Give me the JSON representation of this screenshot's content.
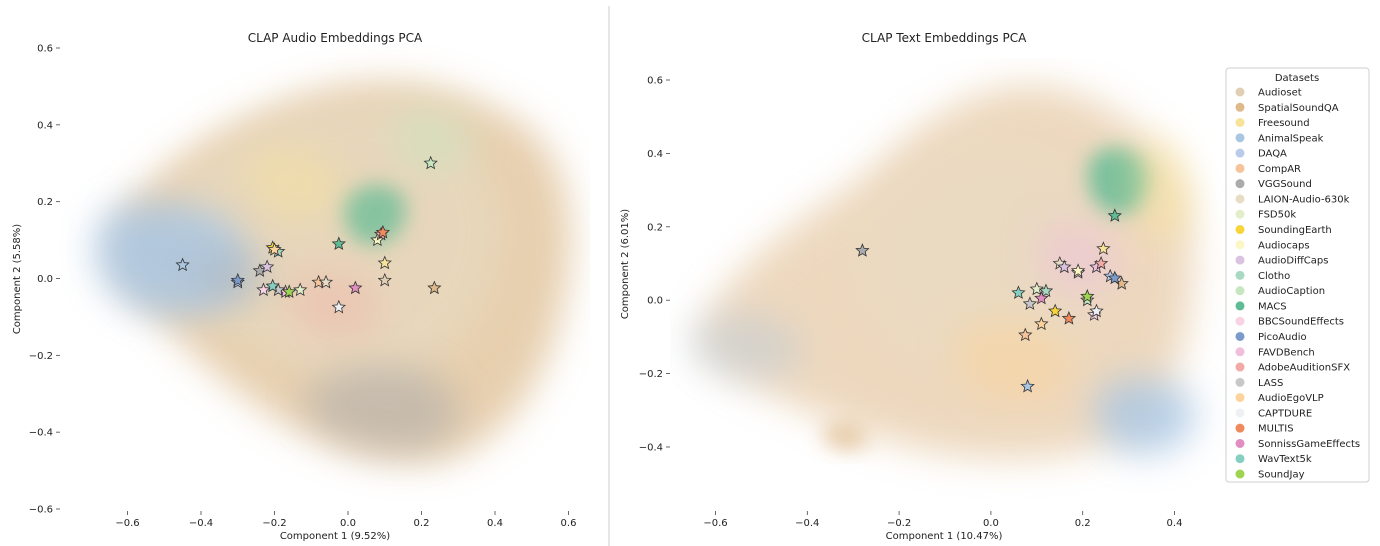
{
  "chart_data": [
    {
      "type": "scatter",
      "title": "CLAP Audio Embeddings PCA",
      "xlabel": "Component 1 (9.52%)",
      "ylabel": "Component 2 (5.58%)",
      "xlim": [
        -0.78,
        0.66
      ],
      "ylim": [
        -0.6,
        0.62
      ],
      "xticks": [
        -0.6,
        -0.4,
        -0.2,
        0.0,
        0.2,
        0.4,
        0.6
      ],
      "xtick_labels": [
        "−0.6",
        "−0.4",
        "−0.2",
        "0.0",
        "0.2",
        "0.4",
        "0.6"
      ],
      "yticks": [
        -0.6,
        -0.4,
        -0.2,
        0.0,
        0.2,
        0.4,
        0.6
      ],
      "ytick_labels": [
        "−0.6",
        "−0.4",
        "−0.2",
        "0.0",
        "0.2",
        "0.4",
        "0.6"
      ],
      "grid": false,
      "centroids": [
        {
          "dataset": "Audioset",
          "x": 0.1,
          "y": -0.005
        },
        {
          "dataset": "SpatialSoundQA",
          "x": 0.235,
          "y": -0.025
        },
        {
          "dataset": "Freesound",
          "x": 0.1,
          "y": 0.04
        },
        {
          "dataset": "AnimalSpeak",
          "x": -0.45,
          "y": 0.035
        },
        {
          "dataset": "DAQA",
          "x": -0.3,
          "y": -0.01
        },
        {
          "dataset": "CompAR",
          "x": -0.08,
          "y": -0.01
        },
        {
          "dataset": "VGGSound",
          "x": -0.24,
          "y": 0.02
        },
        {
          "dataset": "LAION-Audio-630k",
          "x": -0.06,
          "y": -0.01
        },
        {
          "dataset": "FSD50k",
          "x": -0.13,
          "y": -0.03
        },
        {
          "dataset": "SoundingEarth",
          "x": -0.205,
          "y": 0.08
        },
        {
          "dataset": "Audiocaps",
          "x": 0.08,
          "y": 0.1
        },
        {
          "dataset": "AudioDiffCaps",
          "x": -0.22,
          "y": 0.03
        },
        {
          "dataset": "Clotho",
          "x": -0.19,
          "y": 0.07
        },
        {
          "dataset": "AudioCaption",
          "x": 0.225,
          "y": 0.3
        },
        {
          "dataset": "MACS",
          "x": -0.025,
          "y": 0.09
        },
        {
          "dataset": "BBCSoundEffects",
          "x": -0.23,
          "y": -0.03
        },
        {
          "dataset": "PicoAudio",
          "x": -0.3,
          "y": -0.005
        },
        {
          "dataset": "FAVDBench",
          "x": -0.17,
          "y": -0.035
        },
        {
          "dataset": "AdobeAuditionSFX",
          "x": 0.09,
          "y": 0.115
        },
        {
          "dataset": "LASS",
          "x": -0.19,
          "y": -0.03
        },
        {
          "dataset": "AudioEgoVLP",
          "x": -0.2,
          "y": 0.075
        },
        {
          "dataset": "CAPTDURE",
          "x": -0.025,
          "y": -0.075
        },
        {
          "dataset": "MULTIS",
          "x": 0.095,
          "y": 0.12
        },
        {
          "dataset": "SonnissGameEffects",
          "x": 0.02,
          "y": -0.025
        },
        {
          "dataset": "WavText5k",
          "x": -0.205,
          "y": -0.02
        },
        {
          "dataset": "SoundJay",
          "x": -0.16,
          "y": -0.035
        }
      ]
    },
    {
      "type": "scatter",
      "title": "CLAP Text Embeddings PCA",
      "xlabel": "Component 1 (10.47%)",
      "ylabel": "Component 2 (6.01%)",
      "xlim": [
        -0.7,
        0.46
      ],
      "ylim": [
        -0.57,
        0.65
      ],
      "xticks": [
        -0.6,
        -0.4,
        -0.2,
        0.0,
        0.2,
        0.4
      ],
      "xtick_labels": [
        "−0.6",
        "−0.4",
        "−0.2",
        "0.0",
        "0.2",
        "0.4"
      ],
      "yticks": [
        -0.4,
        -0.2,
        0.0,
        0.2,
        0.4,
        0.6
      ],
      "ytick_labels": [
        "−0.4",
        "−0.2",
        "0.0",
        "0.2",
        "0.4",
        "0.6"
      ],
      "grid": false,
      "legend_title": "Datasets",
      "legend_position": "right",
      "centroids": [
        {
          "dataset": "Audioset",
          "x": 0.19,
          "y": 0.075
        },
        {
          "dataset": "SpatialSoundQA",
          "x": 0.285,
          "y": 0.045
        },
        {
          "dataset": "Freesound",
          "x": 0.245,
          "y": 0.14
        },
        {
          "dataset": "AnimalSpeak",
          "x": 0.08,
          "y": -0.235
        },
        {
          "dataset": "DAQA",
          "x": 0.26,
          "y": 0.065
        },
        {
          "dataset": "CompAR",
          "x": 0.075,
          "y": -0.095
        },
        {
          "dataset": "VGGSound",
          "x": -0.28,
          "y": 0.135
        },
        {
          "dataset": "LAION-Audio-630k",
          "x": 0.15,
          "y": 0.1
        },
        {
          "dataset": "FSD50k",
          "x": 0.1,
          "y": 0.03
        },
        {
          "dataset": "SoundingEarth",
          "x": 0.14,
          "y": -0.03
        },
        {
          "dataset": "Audiocaps",
          "x": 0.19,
          "y": 0.08
        },
        {
          "dataset": "AudioDiffCaps",
          "x": 0.16,
          "y": 0.09
        },
        {
          "dataset": "Clotho",
          "x": 0.12,
          "y": 0.025
        },
        {
          "dataset": "AudioCaption",
          "x": 0.21,
          "y": 0.0
        },
        {
          "dataset": "MACS",
          "x": 0.27,
          "y": 0.23
        },
        {
          "dataset": "BBCSoundEffects",
          "x": 0.225,
          "y": -0.04
        },
        {
          "dataset": "PicoAudio",
          "x": 0.27,
          "y": 0.06
        },
        {
          "dataset": "FAVDBench",
          "x": 0.23,
          "y": 0.09
        },
        {
          "dataset": "AdobeAuditionSFX",
          "x": 0.24,
          "y": 0.1
        },
        {
          "dataset": "LASS",
          "x": 0.085,
          "y": -0.01
        },
        {
          "dataset": "AudioEgoVLP",
          "x": 0.11,
          "y": -0.065
        },
        {
          "dataset": "CAPTDURE",
          "x": 0.23,
          "y": -0.03
        },
        {
          "dataset": "MULTIS",
          "x": 0.17,
          "y": -0.05
        },
        {
          "dataset": "SonnissGameEffects",
          "x": 0.11,
          "y": 0.005
        },
        {
          "dataset": "WavText5k",
          "x": 0.06,
          "y": 0.02
        },
        {
          "dataset": "SoundJay",
          "x": 0.21,
          "y": 0.01
        }
      ]
    }
  ],
  "legend": {
    "title": "Datasets",
    "items": [
      {
        "label": "Audioset",
        "color": "#e0cfb4"
      },
      {
        "label": "SpatialSoundQA",
        "color": "#dfb98a"
      },
      {
        "label": "Freesound",
        "color": "#f8e39a"
      },
      {
        "label": "AnimalSpeak",
        "color": "#a9c6e3"
      },
      {
        "label": "DAQA",
        "color": "#b9cbe8"
      },
      {
        "label": "CompAR",
        "color": "#f6c49a"
      },
      {
        "label": "VGGSound",
        "color": "#ababab"
      },
      {
        "label": "LAION-Audio-630k",
        "color": "#e8dcc4"
      },
      {
        "label": "FSD50k",
        "color": "#e2eec9"
      },
      {
        "label": "SoundingEarth",
        "color": "#f7d43a"
      },
      {
        "label": "Audiocaps",
        "color": "#fbf7c4"
      },
      {
        "label": "AudioDiffCaps",
        "color": "#dcc2e2"
      },
      {
        "label": "Clotho",
        "color": "#a7d9c3"
      },
      {
        "label": "AudioCaption",
        "color": "#c6e6c0"
      },
      {
        "label": "MACS",
        "color": "#5fbb94"
      },
      {
        "label": "BBCSoundEffects",
        "color": "#f8d3e4"
      },
      {
        "label": "PicoAudio",
        "color": "#7b9ccb"
      },
      {
        "label": "FAVDBench",
        "color": "#efbfdc"
      },
      {
        "label": "AdobeAuditionSFX",
        "color": "#f3aaa6"
      },
      {
        "label": "LASS",
        "color": "#c8c8c8"
      },
      {
        "label": "AudioEgoVLP",
        "color": "#fbd39b"
      },
      {
        "label": "CAPTDURE",
        "color": "#eef0f4"
      },
      {
        "label": "MULTIS",
        "color": "#f08a5d"
      },
      {
        "label": "SonnissGameEffects",
        "color": "#e38ec0"
      },
      {
        "label": "WavText5k",
        "color": "#86cfc0"
      },
      {
        "label": "SoundJay",
        "color": "#9ed44f"
      }
    ]
  }
}
